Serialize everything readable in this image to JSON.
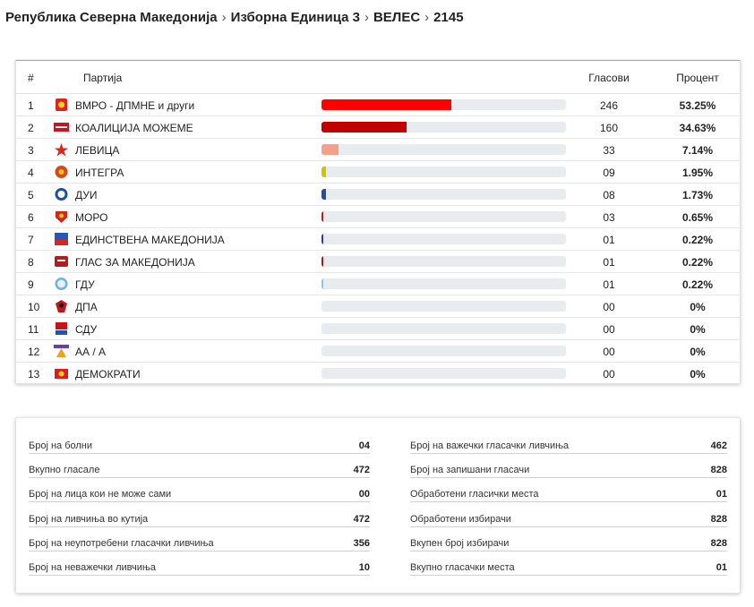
{
  "breadcrumb": [
    "Република Северна Македонија",
    "Изборна Единица 3",
    "ВЕЛЕС",
    "2145"
  ],
  "table": {
    "headers": {
      "num": "#",
      "party": "Партија",
      "votes": "Гласови",
      "percent": "Процент"
    },
    "rows": [
      {
        "num": "1",
        "party": "ВМРО - ДПМНЕ и други",
        "votes": "246",
        "percent": "53.25%",
        "share": 0.5325,
        "bar_color": "#ff0000",
        "logo_icon": "vmro-dpmne-logo-icon",
        "logo_color": "#d9261c"
      },
      {
        "num": "2",
        "party": "КОАЛИЦИЈА МОЖЕМЕ",
        "votes": "160",
        "percent": "34.63%",
        "share": 0.3463,
        "bar_color": "#c00000",
        "logo_icon": "sdsm-logo-icon",
        "logo_color": "#c8161d"
      },
      {
        "num": "3",
        "party": "ЛЕВИЦА",
        "votes": "33",
        "percent": "7.14%",
        "share": 0.0714,
        "bar_color": "#f4a08a",
        "logo_icon": "levica-star-logo-icon",
        "logo_color": "#e2231a"
      },
      {
        "num": "4",
        "party": "ИНТЕГРА",
        "votes": "09",
        "percent": "1.95%",
        "share": 0.0195,
        "bar_color": "#c8c800",
        "logo_icon": "integra-logo-icon",
        "logo_color": "#d44a1c"
      },
      {
        "num": "5",
        "party": "ДУИ",
        "votes": "08",
        "percent": "1.73%",
        "share": 0.0173,
        "bar_color": "#2b4da0",
        "logo_icon": "dui-logo-icon",
        "logo_color": "#1f4ea3"
      },
      {
        "num": "6",
        "party": "МОРО",
        "votes": "03",
        "percent": "0.65%",
        "share": 0.0065,
        "bar_color": "#b22222",
        "logo_icon": "moro-logo-icon",
        "logo_color": "#cc2a1f"
      },
      {
        "num": "7",
        "party": "ЕДИНСТВЕНА МАКЕДОНИЈА",
        "votes": "01",
        "percent": "0.22%",
        "share": 0.0022,
        "bar_color": "#2a3f8f",
        "logo_icon": "edinstvena-makedonija-logo-icon",
        "logo_color": "#2a56b5"
      },
      {
        "num": "8",
        "party": "ГЛАС ЗА МАКЕДОНИЈА",
        "votes": "01",
        "percent": "0.22%",
        "share": 0.0022,
        "bar_color": "#a01c1c",
        "logo_icon": "glas-logo-icon",
        "logo_color": "#b41c1c"
      },
      {
        "num": "9",
        "party": "ГДУ",
        "votes": "01",
        "percent": "0.22%",
        "share": 0.0022,
        "bar_color": "#8fc4e8",
        "logo_icon": "gdu-logo-icon",
        "logo_color": "#6fb3e0"
      },
      {
        "num": "10",
        "party": "ДПА",
        "votes": "00",
        "percent": "0%",
        "share": 0,
        "bar_color": "#000000",
        "logo_icon": "dpa-eagle-logo-icon",
        "logo_color": "#c3161c"
      },
      {
        "num": "11",
        "party": "СДУ",
        "votes": "00",
        "percent": "0%",
        "share": 0,
        "bar_color": "#000000",
        "logo_icon": "sdu-logo-icon",
        "logo_color": "#c3161c"
      },
      {
        "num": "12",
        "party": "АА / А",
        "votes": "00",
        "percent": "0%",
        "share": 0,
        "bar_color": "#000000",
        "logo_icon": "aa-a-logo-icon",
        "logo_color": "#6a3fa0"
      },
      {
        "num": "13",
        "party": "ДЕМОКРАТИ",
        "votes": "00",
        "percent": "0%",
        "share": 0,
        "bar_color": "#000000",
        "logo_icon": "demokrati-logo-icon",
        "logo_color": "#e01b1b"
      }
    ]
  },
  "stats": {
    "left": [
      {
        "label": "Број на болни",
        "value": "04"
      },
      {
        "label": "Вкупно гласале",
        "value": "472"
      },
      {
        "label": "Број на лица кои не може сами",
        "value": "00"
      },
      {
        "label": "Број на ливчиња во кутија",
        "value": "472"
      },
      {
        "label": "Број на неупотребени гласачки ливчиња",
        "value": "356"
      },
      {
        "label": "Број на неважечки ливчиња",
        "value": "10"
      }
    ],
    "right": [
      {
        "label": "Број на важечки гласачки ливчиња",
        "value": "462"
      },
      {
        "label": "Број на запишани гласачи",
        "value": "828"
      },
      {
        "label": "Обработени гласички места",
        "value": "01"
      },
      {
        "label": "Обработени избирачи",
        "value": "828"
      },
      {
        "label": "Вкупен број избирачи",
        "value": "828"
      },
      {
        "label": "Вкупно гласачки места",
        "value": "01"
      }
    ]
  }
}
